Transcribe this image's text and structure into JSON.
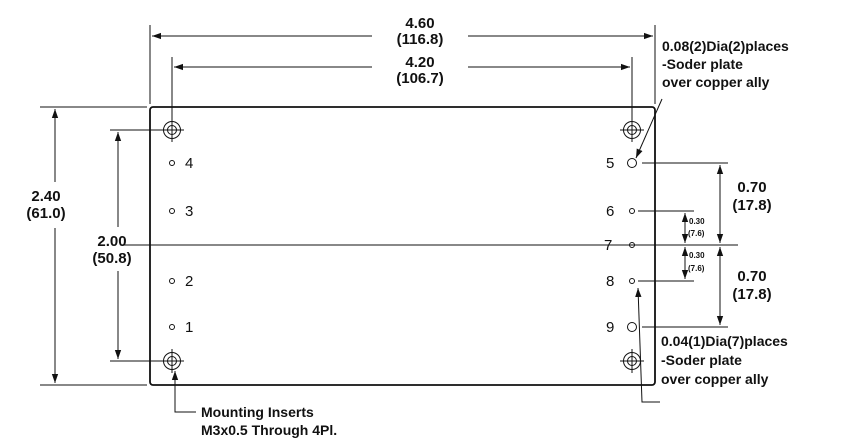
{
  "dimensions": {
    "overall_width": {
      "in": "4.60",
      "mm": "(116.8)"
    },
    "hole_spacing_width": {
      "in": "4.20",
      "mm": "(106.7)"
    },
    "overall_height": {
      "in": "2.40",
      "mm": "(61.0)"
    },
    "hole_spacing_height": {
      "in": "2.00",
      "mm": "(50.8)"
    },
    "pin_spacing_large_top": {
      "in": "0.70",
      "mm": "(17.8)"
    },
    "pin_spacing_large_bottom": {
      "in": "0.70",
      "mm": "(17.8)"
    },
    "pin_spacing_small_top": {
      "in": "0.30",
      "mm": "(7.6)"
    },
    "pin_spacing_small_bottom": {
      "in": "0.30",
      "mm": "(7.6)"
    }
  },
  "pins_left": [
    "4",
    "3",
    "2",
    "1"
  ],
  "pins_right": [
    "5",
    "6",
    "7",
    "8",
    "9"
  ],
  "notes": {
    "large_pins": [
      "0.08(2)Dia(2)places",
      "-Soder plate",
      "over copper ally"
    ],
    "small_pins": [
      "0.04(1)Dia(7)places",
      "-Soder plate",
      "over copper ally"
    ],
    "mounting": [
      "Mounting Inserts",
      "M3x0.5 Through 4Pl."
    ]
  }
}
